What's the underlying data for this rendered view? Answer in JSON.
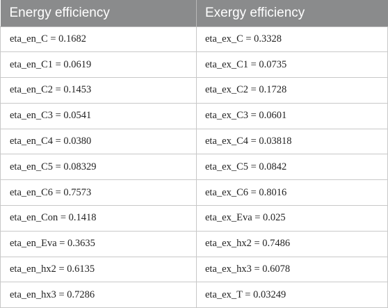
{
  "table": {
    "headers": [
      "Energy efficiency",
      "Exergy efficiency"
    ],
    "rows": [
      [
        "eta_en_C = 0.1682",
        "eta_ex_C = 0.3328"
      ],
      [
        "eta_en_C1 = 0.0619",
        "eta_ex_C1 = 0.0735"
      ],
      [
        "eta_en_C2 = 0.1453",
        "eta_ex_C2 = 0.1728"
      ],
      [
        "eta_en_C3 = 0.0541",
        "eta_ex_C3 = 0.0601"
      ],
      [
        "eta_en_C4 = 0.0380",
        "eta_ex_C4 = 0.03818"
      ],
      [
        "eta_en_C5 = 0.08329",
        "eta_ex_C5 = 0.0842"
      ],
      [
        "eta_en_C6 = 0.7573",
        "eta_ex_C6 = 0.8016"
      ],
      [
        "eta_en_Con = 0.1418",
        "eta_ex_Eva = 0.025"
      ],
      [
        "eta_en_Eva = 0.3635",
        "eta_ex_hx2 = 0.7486"
      ],
      [
        "eta_en_hx2 = 0.6135",
        "eta_ex_hx3 = 0.6078"
      ],
      [
        "eta_en_hx3 = 0.7286",
        "eta_ex_T = 0.03249"
      ]
    ]
  },
  "colors": {
    "header_bg": "#8a8b8c",
    "header_text": "#ffffff",
    "grid": "#c8c8c8"
  }
}
